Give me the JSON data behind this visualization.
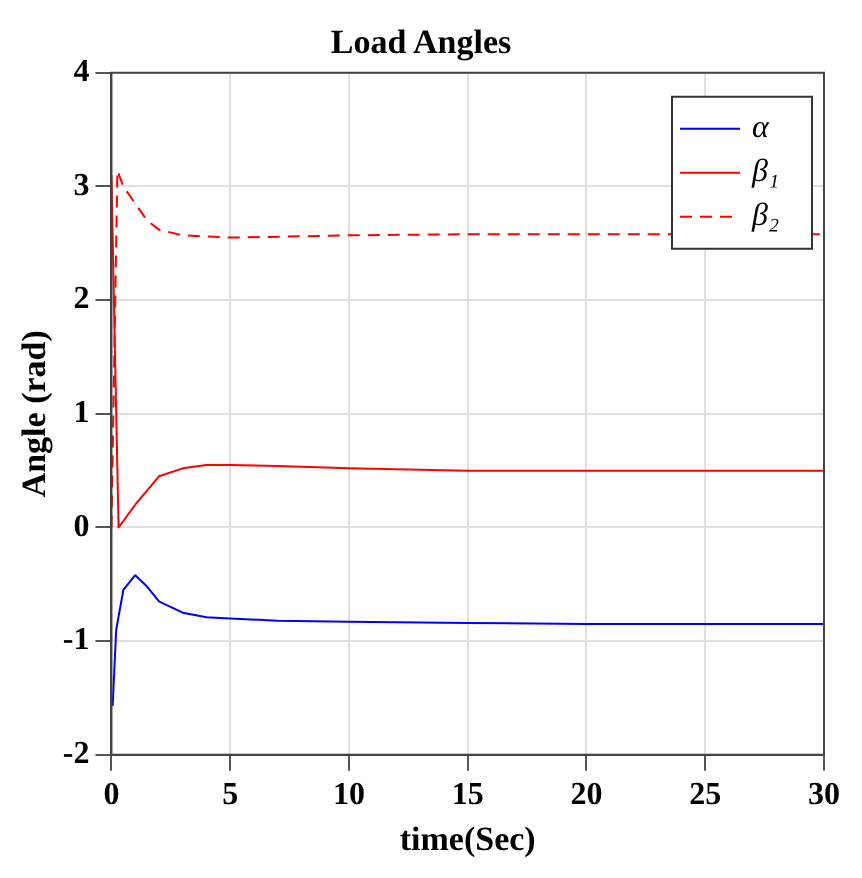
{
  "chart_data": {
    "type": "line",
    "title": "Load Angles",
    "xlabel": "time(Sec)",
    "ylabel": "Angle (rad)",
    "xlim": [
      0,
      30
    ],
    "xticks": [
      0,
      5,
      10,
      15,
      20,
      25,
      30
    ],
    "ylim": [
      -2,
      4
    ],
    "yticks": [
      -2,
      -1,
      0,
      1,
      2,
      3,
      4
    ],
    "grid": true,
    "legend": "top right",
    "marker": "none",
    "series": [
      {
        "name": "α",
        "color": "#0000ff",
        "line_style": "solid",
        "x": [
          0.05,
          0.2,
          0.5,
          1,
          1.5,
          2,
          3,
          4,
          5,
          7,
          10,
          15,
          20,
          25,
          30
        ],
        "values": [
          -1.57,
          -0.9,
          -0.55,
          -0.42,
          -0.52,
          -0.65,
          -0.75,
          -0.79,
          -0.8,
          -0.82,
          -0.83,
          -0.84,
          -0.85,
          -0.85,
          -0.85
        ]
      },
      {
        "name": "β₁",
        "color": "#ff0000",
        "line_style": "solid",
        "x": [
          0,
          0.15,
          0.3,
          1,
          2,
          3,
          4,
          5,
          7,
          10,
          15,
          20,
          25,
          30
        ],
        "values": [
          3.1,
          1.5,
          0,
          0.2,
          0.45,
          0.52,
          0.55,
          0.55,
          0.54,
          0.52,
          0.5,
          0.5,
          0.5,
          0.5
        ]
      },
      {
        "name": "β₂",
        "color": "#ff0000",
        "line_style": "dashed",
        "x": [
          0,
          0.25,
          0.5,
          1,
          1.5,
          2,
          3,
          5,
          10,
          15,
          20,
          30
        ],
        "values": [
          0,
          3.14,
          3.0,
          2.85,
          2.7,
          2.62,
          2.57,
          2.55,
          2.57,
          2.58,
          2.58,
          2.58
        ]
      }
    ]
  }
}
